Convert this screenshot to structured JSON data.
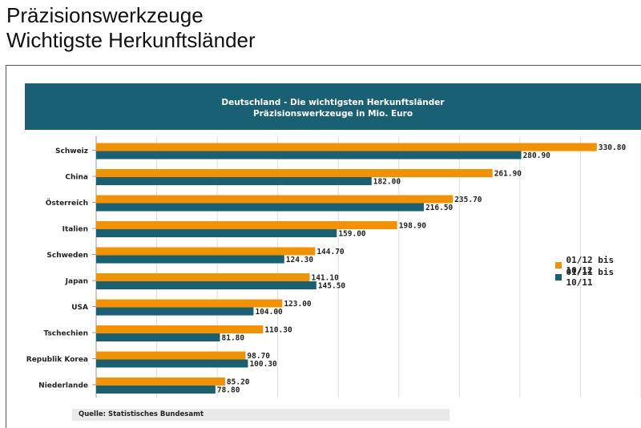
{
  "slide": {
    "title_line1": "Präzisionswerkzeuge",
    "title_line2": "Wichtigste Herkunftsländer"
  },
  "chart_data": {
    "type": "bar",
    "orientation": "horizontal",
    "title": "Deutschland - Die wichtigsten Herkunftsländer",
    "subtitle": "Präzisionswerkzeuge in Mio. Euro",
    "categories": [
      "Schweiz",
      "China",
      "Österreich",
      "Italien",
      "Schweden",
      "Japan",
      "USA",
      "Tschechien",
      "Republik Korea",
      "Niederlande"
    ],
    "series": [
      {
        "name": "01/12 bis 10/12",
        "color": "#f39200",
        "values": [
          330.8,
          261.9,
          235.7,
          198.9,
          144.7,
          141.1,
          123.0,
          110.3,
          98.7,
          85.2
        ],
        "labels": [
          "330.80",
          "261.90",
          "235.70",
          "198.90",
          "144.70",
          "141.10",
          "123.00",
          "110.30",
          "98.70",
          "85.20"
        ]
      },
      {
        "name": "01/11 bis 10/11",
        "color": "#1a6075",
        "values": [
          280.9,
          182.0,
          216.5,
          159.0,
          124.3,
          145.5,
          104.0,
          81.8,
          100.3,
          78.8
        ],
        "labels": [
          "280.90",
          "182.00",
          "216.50",
          "159.00",
          "124.30",
          "145.50",
          "104.00",
          "81.80",
          "100.30",
          "78.80"
        ]
      }
    ],
    "xlim": [
      0,
      360
    ],
    "grid": true,
    "legend_position": "right"
  },
  "source": "Quelle: Statistisches Bundesamt"
}
